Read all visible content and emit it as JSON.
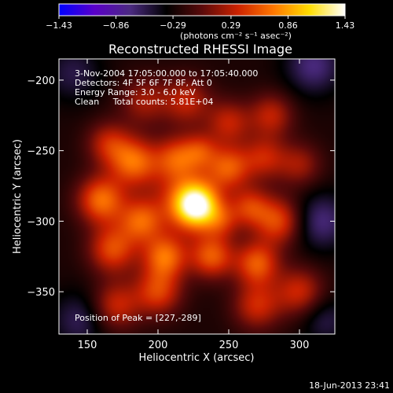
{
  "chart_data": {
    "type": "heatmap",
    "title": "Reconstructed RHESSI Image",
    "xlabel": "Heliocentric X (arcsec)",
    "ylabel": "Heliocentric Y (arcsec)",
    "xlim": [
      130,
      325
    ],
    "ylim": [
      -380,
      -185
    ],
    "x_ticks": [
      150,
      200,
      250,
      300
    ],
    "y_ticks": [
      -200,
      -250,
      -300,
      -350
    ],
    "colorbar": {
      "ticks": [
        "-1.43",
        "-0.86",
        "-0.29",
        "0.29",
        "0.86",
        "1.43"
      ],
      "range": [
        -1.43,
        1.43
      ],
      "unit_label": "(photons cm⁻² s⁻¹ asec⁻²)",
      "colormap": [
        "#0000ff",
        "#5a00c8",
        "#4b2a80",
        "#000000",
        "#5a0a0a",
        "#cc2200",
        "#ff7700",
        "#ffdd00",
        "#ffffff"
      ]
    },
    "annotations": [
      " 3-Nov-2004 17:05:00.000 to 17:05:40.000",
      "Detectors: 4F 5F 6F 7F 8F, Att 0",
      "Energy Range: 3.0 - 6.0 keV",
      "Clean     Total counts: 5.81E+04"
    ],
    "peak_label": "Position of Peak = [227,-289]",
    "peak": [
      227,
      -289
    ],
    "blobs": [
      {
        "x": 227,
        "y": -289,
        "amp": 1.45,
        "s": 11
      },
      {
        "x": 218,
        "y": -283,
        "amp": 0.55,
        "s": 18
      },
      {
        "x": 250,
        "y": -262,
        "amp": 0.75,
        "s": 11
      },
      {
        "x": 213,
        "y": -255,
        "amp": 0.65,
        "s": 11
      },
      {
        "x": 183,
        "y": -258,
        "amp": 0.85,
        "s": 12
      },
      {
        "x": 165,
        "y": -245,
        "amp": 0.55,
        "s": 11
      },
      {
        "x": 160,
        "y": -285,
        "amp": 0.9,
        "s": 12
      },
      {
        "x": 168,
        "y": -320,
        "amp": 0.75,
        "s": 12
      },
      {
        "x": 188,
        "y": -300,
        "amp": 0.75,
        "s": 11
      },
      {
        "x": 205,
        "y": -325,
        "amp": 0.85,
        "s": 11
      },
      {
        "x": 238,
        "y": -325,
        "amp": 0.8,
        "s": 11
      },
      {
        "x": 270,
        "y": -330,
        "amp": 0.8,
        "s": 11
      },
      {
        "x": 285,
        "y": -300,
        "amp": 0.75,
        "s": 12
      },
      {
        "x": 265,
        "y": -290,
        "amp": 0.6,
        "s": 10
      },
      {
        "x": 275,
        "y": -255,
        "amp": 0.55,
        "s": 11
      },
      {
        "x": 250,
        "y": -230,
        "amp": 0.55,
        "s": 11
      },
      {
        "x": 280,
        "y": -225,
        "amp": 0.55,
        "s": 11
      },
      {
        "x": 220,
        "y": -215,
        "amp": 0.55,
        "s": 12
      },
      {
        "x": 190,
        "y": -215,
        "amp": 0.45,
        "s": 12
      },
      {
        "x": 300,
        "y": -350,
        "amp": 0.6,
        "s": 12
      },
      {
        "x": 270,
        "y": -360,
        "amp": 0.6,
        "s": 12
      },
      {
        "x": 200,
        "y": -350,
        "amp": 0.7,
        "s": 12
      },
      {
        "x": 170,
        "y": -360,
        "amp": 0.6,
        "s": 12
      },
      {
        "x": 300,
        "y": -260,
        "amp": 0.45,
        "s": 11
      },
      {
        "x": 230,
        "y": -250,
        "amp": 0.5,
        "s": 9
      },
      {
        "x": 245,
        "y": -300,
        "amp": 0.45,
        "s": 9
      },
      {
        "x": 145,
        "y": -370,
        "amp": -0.35,
        "s": 14
      },
      {
        "x": 315,
        "y": -300,
        "amp": -0.45,
        "s": 14
      },
      {
        "x": 310,
        "y": -190,
        "amp": -0.45,
        "s": 14
      },
      {
        "x": 140,
        "y": -195,
        "amp": -0.3,
        "s": 14
      },
      {
        "x": 318,
        "y": -370,
        "amp": -0.3,
        "s": 12
      }
    ],
    "base_level": -0.25,
    "grid": false
  },
  "footer_date": "18-Jun-2013 23:41"
}
